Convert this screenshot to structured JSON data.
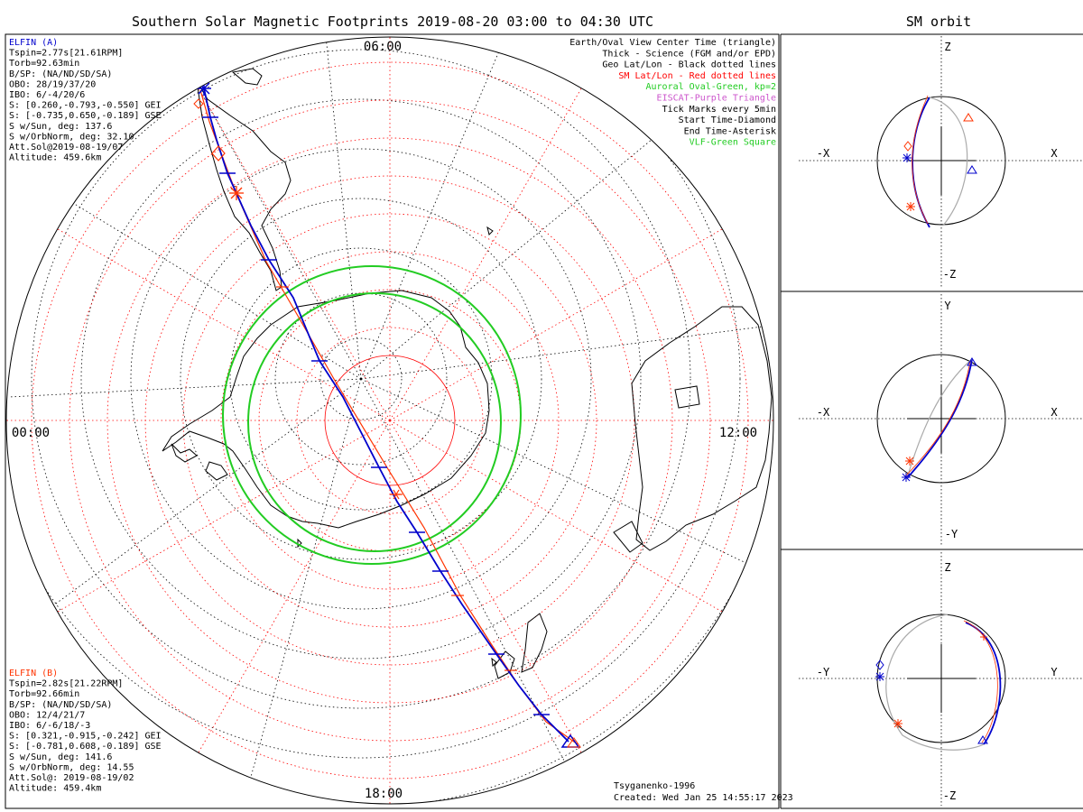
{
  "main_title": "Southern Solar Magnetic Footprints 2019-08-20 03:00 to 04:30 UTC",
  "orbit_title": "SM orbit",
  "time_labels": {
    "top": "06:00",
    "left": "00:00",
    "right": "12:00",
    "bottom": "18:00"
  },
  "elfin_a": {
    "color": "#0000cc",
    "lines": [
      "ELFIN (A)",
      "Tspin=2.77s[21.61RPM]",
      "Torb=92.63min",
      "B/SP: (NA/ND/SD/SA)",
      "OBO: 28/19/37/20",
      "IBO: 6/-4/20/6",
      "S: [0.260,-0.793,-0.550] GEI",
      "S: [-0.735,0.650,-0.189] GSE",
      "S w/Sun, deg: 137.6",
      "S w/OrbNorm, deg: 32.10",
      "Att.Sol@2019-08-19/07",
      "Altitude: 459.6km"
    ]
  },
  "elfin_b": {
    "color": "#ff3300",
    "lines": [
      "ELFIN (B)",
      "Tspin=2.82s[21.22RPM]",
      "Torb=92.66min",
      "B/SP: (NA/ND/SD/SA)",
      "OBO: 12/4/21/7",
      "IBO: 6/-6/18/-3",
      "S: [0.321,-0.915,-0.242] GEI",
      "S: [-0.781,0.608,-0.189] GSE",
      "S w/Sun, deg: 141.6",
      "S w/OrbNorm, deg: 14.55",
      "Att.Sol@: 2019-08-19/02",
      "Altitude: 459.4km"
    ]
  },
  "legend": [
    {
      "text": "Earth/Oval View Center Time (triangle)",
      "color": "#000000"
    },
    {
      "text": "Thick - Science (FGM and/or EPD)",
      "color": "#000000"
    },
    {
      "text": "Geo Lat/Lon - Black dotted lines",
      "color": "#000000"
    },
    {
      "text": "SM Lat/Lon - Red dotted lines",
      "color": "#ff0000"
    },
    {
      "text": "Auroral Oval-Green, kp=2",
      "color": "#22cc22"
    },
    {
      "text": "EISCAT-Purple Triangle",
      "color": "#cc55cc"
    },
    {
      "text": "Tick Marks every 5min",
      "color": "#000000"
    },
    {
      "text": "Start Time-Diamond",
      "color": "#000000"
    },
    {
      "text": "End Time-Asterisk",
      "color": "#000000"
    },
    {
      "text": "VLF-Green Square",
      "color": "#22cc22"
    }
  ],
  "credits": {
    "model": "Tsyganenko-1996",
    "created": "Created: Wed Jan 25 14:55:17 2023"
  },
  "orbit_panels": [
    {
      "top": "Z",
      "bottom": "-Z",
      "left": "-X",
      "right": "X"
    },
    {
      "top": "Y",
      "bottom": "-Y",
      "left": "-X",
      "right": "X"
    },
    {
      "top": "Z",
      "bottom": "-Z",
      "left": "-Y",
      "right": "Y"
    }
  ],
  "colors": {
    "elfin_a": "#0000cc",
    "elfin_b": "#ff3300",
    "oval": "#22cc22",
    "sm_grid": "#ff0000",
    "geo_grid": "#000000",
    "orbit_gray": "#aaaaaa"
  }
}
